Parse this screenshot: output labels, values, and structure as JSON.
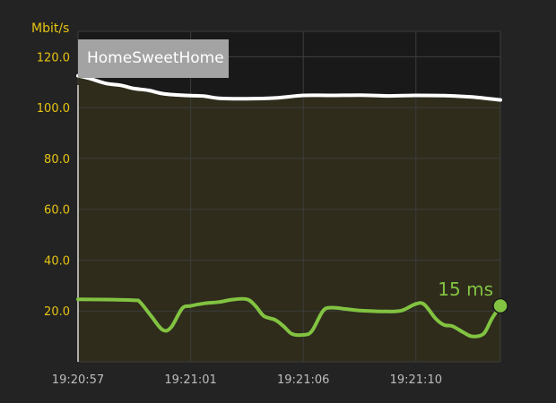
{
  "network_name": "HomeSweetHome",
  "colors": {
    "background": "#232323",
    "plot_top": "#191919",
    "throughput_fill": "#2f2c1c",
    "throughput_line": "#ffffff",
    "ping_line": "#82c341",
    "axis_text": "#e6c414",
    "x_tick_text": "#bdbdbd",
    "grid": "#3c3c3c",
    "badge": "#a3a3a3"
  },
  "chart_data": {
    "type": "line",
    "ylabel": "Mbit/s",
    "ylim": [
      0,
      130
    ],
    "xlim": [
      0,
      15
    ],
    "yticks": [
      "20.0",
      "40.0",
      "60.0",
      "80.0",
      "100.0",
      "120.0"
    ],
    "xticks": [
      {
        "t": 0,
        "label": "19:20:57"
      },
      {
        "t": 4,
        "label": "19:21:01"
      },
      {
        "t": 8,
        "label": "19:21:06"
      },
      {
        "t": 12,
        "label": "19:21:10"
      }
    ],
    "grid": true,
    "series": [
      {
        "kind": "throughput",
        "points": [
          [
            0,
            112.5
          ],
          [
            0.4,
            111.5
          ],
          [
            1,
            109.5
          ],
          [
            1.5,
            108.8
          ],
          [
            2,
            107.5
          ],
          [
            2.5,
            106.8
          ],
          [
            3,
            105.5
          ],
          [
            3.5,
            105.0
          ],
          [
            4,
            104.7
          ],
          [
            4.5,
            104.5
          ],
          [
            5,
            103.7
          ],
          [
            6,
            103.5
          ],
          [
            7,
            103.8
          ],
          [
            8,
            104.8
          ],
          [
            9,
            104.8
          ],
          [
            10,
            104.9
          ],
          [
            11,
            104.6
          ],
          [
            12,
            104.8
          ],
          [
            13,
            104.7
          ],
          [
            14,
            104.2
          ],
          [
            14.5,
            103.6
          ],
          [
            15,
            103.0
          ]
        ]
      },
      {
        "kind": "ping",
        "points": [
          [
            0,
            24.6
          ],
          [
            1,
            24.5
          ],
          [
            2,
            24.2
          ],
          [
            2.2,
            23.5
          ],
          [
            2.6,
            18
          ],
          [
            3,
            12.6
          ],
          [
            3.3,
            13.5
          ],
          [
            3.7,
            21
          ],
          [
            4,
            22.0
          ],
          [
            4.5,
            23.0
          ],
          [
            5,
            23.5
          ],
          [
            5.5,
            24.5
          ],
          [
            6,
            24.6
          ],
          [
            6.3,
            22
          ],
          [
            6.6,
            18
          ],
          [
            7,
            16.5
          ],
          [
            7.3,
            14
          ],
          [
            7.6,
            11
          ],
          [
            8,
            10.6
          ],
          [
            8.3,
            12
          ],
          [
            8.7,
            20
          ],
          [
            9,
            21.3
          ],
          [
            9.5,
            20.8
          ],
          [
            10,
            20.2
          ],
          [
            11,
            19.8
          ],
          [
            11.5,
            20.2
          ],
          [
            12,
            22.8
          ],
          [
            12.3,
            22.5
          ],
          [
            12.7,
            17
          ],
          [
            13,
            14.5
          ],
          [
            13.3,
            14.0
          ],
          [
            13.7,
            11.5
          ],
          [
            14,
            10
          ],
          [
            14.4,
            11
          ],
          [
            14.7,
            17
          ],
          [
            15,
            22
          ]
        ]
      }
    ],
    "annotation": "15 ms"
  }
}
